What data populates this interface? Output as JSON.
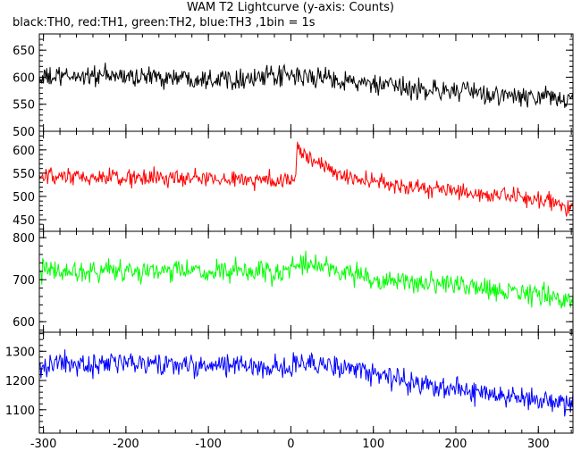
{
  "chart_data": {
    "type": "line",
    "title": "WAM T2 Lightcurve (y-axis: Counts)",
    "subtitle": "black:TH0, red:TH1, green:TH2, blue:TH3 ,1bin = 1s",
    "x_range": [
      -305,
      342
    ],
    "x_ticks": [
      -300,
      -200,
      -100,
      0,
      100,
      200,
      300
    ],
    "x_tick_labels": [
      "-300",
      "-200",
      "-100",
      "0",
      "100",
      "200",
      "300"
    ],
    "bin_seconds": 1,
    "panels": [
      {
        "name": "TH0",
        "color": "#000000",
        "ylim": [
          500,
          680
        ],
        "yticks": [
          500,
          550,
          600,
          650
        ],
        "ytick_labels": [
          "500",
          "550",
          "600",
          "650"
        ],
        "trend": [
          {
            "x": -300,
            "y": 598
          },
          {
            "x": -250,
            "y": 603
          },
          {
            "x": -150,
            "y": 600
          },
          {
            "x": -50,
            "y": 598
          },
          {
            "x": 0,
            "y": 602
          },
          {
            "x": 50,
            "y": 598
          },
          {
            "x": 100,
            "y": 585
          },
          {
            "x": 150,
            "y": 578
          },
          {
            "x": 200,
            "y": 575
          },
          {
            "x": 250,
            "y": 566
          },
          {
            "x": 300,
            "y": 562
          },
          {
            "x": 340,
            "y": 560
          }
        ],
        "noise_amp": 22
      },
      {
        "name": "TH1",
        "color": "#ff0000",
        "ylim": [
          425,
          640
        ],
        "yticks": [
          450,
          500,
          550,
          600
        ],
        "ytick_labels": [
          "450",
          "500",
          "550",
          "600"
        ],
        "trend": [
          {
            "x": -300,
            "y": 540
          },
          {
            "x": -200,
            "y": 540
          },
          {
            "x": -100,
            "y": 538
          },
          {
            "x": 0,
            "y": 535
          },
          {
            "x": 5,
            "y": 535
          },
          {
            "x": 8,
            "y": 605
          },
          {
            "x": 30,
            "y": 570
          },
          {
            "x": 60,
            "y": 548
          },
          {
            "x": 100,
            "y": 530
          },
          {
            "x": 200,
            "y": 510
          },
          {
            "x": 300,
            "y": 492
          },
          {
            "x": 340,
            "y": 480
          }
        ],
        "noise_amp": 22
      },
      {
        "name": "TH2",
        "color": "#00ff00",
        "ylim": [
          575,
          815
        ],
        "yticks": [
          600,
          700,
          800
        ],
        "ytick_labels": [
          "600",
          "700",
          "800"
        ],
        "trend": [
          {
            "x": -300,
            "y": 720
          },
          {
            "x": -200,
            "y": 722
          },
          {
            "x": -100,
            "y": 718
          },
          {
            "x": -10,
            "y": 715
          },
          {
            "x": 10,
            "y": 740
          },
          {
            "x": 40,
            "y": 730
          },
          {
            "x": 100,
            "y": 700
          },
          {
            "x": 200,
            "y": 685
          },
          {
            "x": 300,
            "y": 665
          },
          {
            "x": 340,
            "y": 650
          }
        ],
        "noise_amp": 30
      },
      {
        "name": "TH3",
        "color": "#0000ff",
        "ylim": [
          1020,
          1365
        ],
        "yticks": [
          1100,
          1200,
          1300
        ],
        "ytick_labels": [
          "1100",
          "1200",
          "1300"
        ],
        "trend": [
          {
            "x": -300,
            "y": 1255
          },
          {
            "x": -200,
            "y": 1255
          },
          {
            "x": -100,
            "y": 1250
          },
          {
            "x": 0,
            "y": 1248
          },
          {
            "x": 10,
            "y": 1262
          },
          {
            "x": 60,
            "y": 1245
          },
          {
            "x": 100,
            "y": 1222
          },
          {
            "x": 150,
            "y": 1190
          },
          {
            "x": 200,
            "y": 1170
          },
          {
            "x": 300,
            "y": 1135
          },
          {
            "x": 340,
            "y": 1120
          }
        ],
        "noise_amp": 45
      }
    ]
  }
}
